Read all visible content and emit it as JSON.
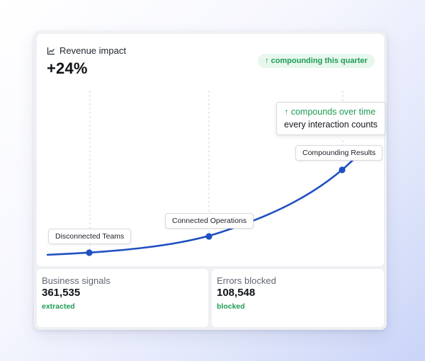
{
  "colors": {
    "accent_curve": "#1f4fc2",
    "positive_green": "#1e9b53",
    "badge_bg": "#e7f7ee"
  },
  "chart": {
    "title_icon": "line-chart-icon",
    "title": "Revenue impact",
    "value": "+24%",
    "badge": "↑ compounding this quarter",
    "callout": {
      "line1": "↑ compounds over time",
      "line2": "every interaction counts"
    },
    "points": [
      {
        "label": "Disconnected Teams"
      },
      {
        "label": "Connected Operations"
      },
      {
        "label": "Compounding Results"
      }
    ]
  },
  "stats": [
    {
      "label": "Business signals",
      "value": "361,535",
      "sub": "extracted"
    },
    {
      "label": "Errors blocked",
      "value": "108,548",
      "sub": "blocked"
    }
  ]
}
